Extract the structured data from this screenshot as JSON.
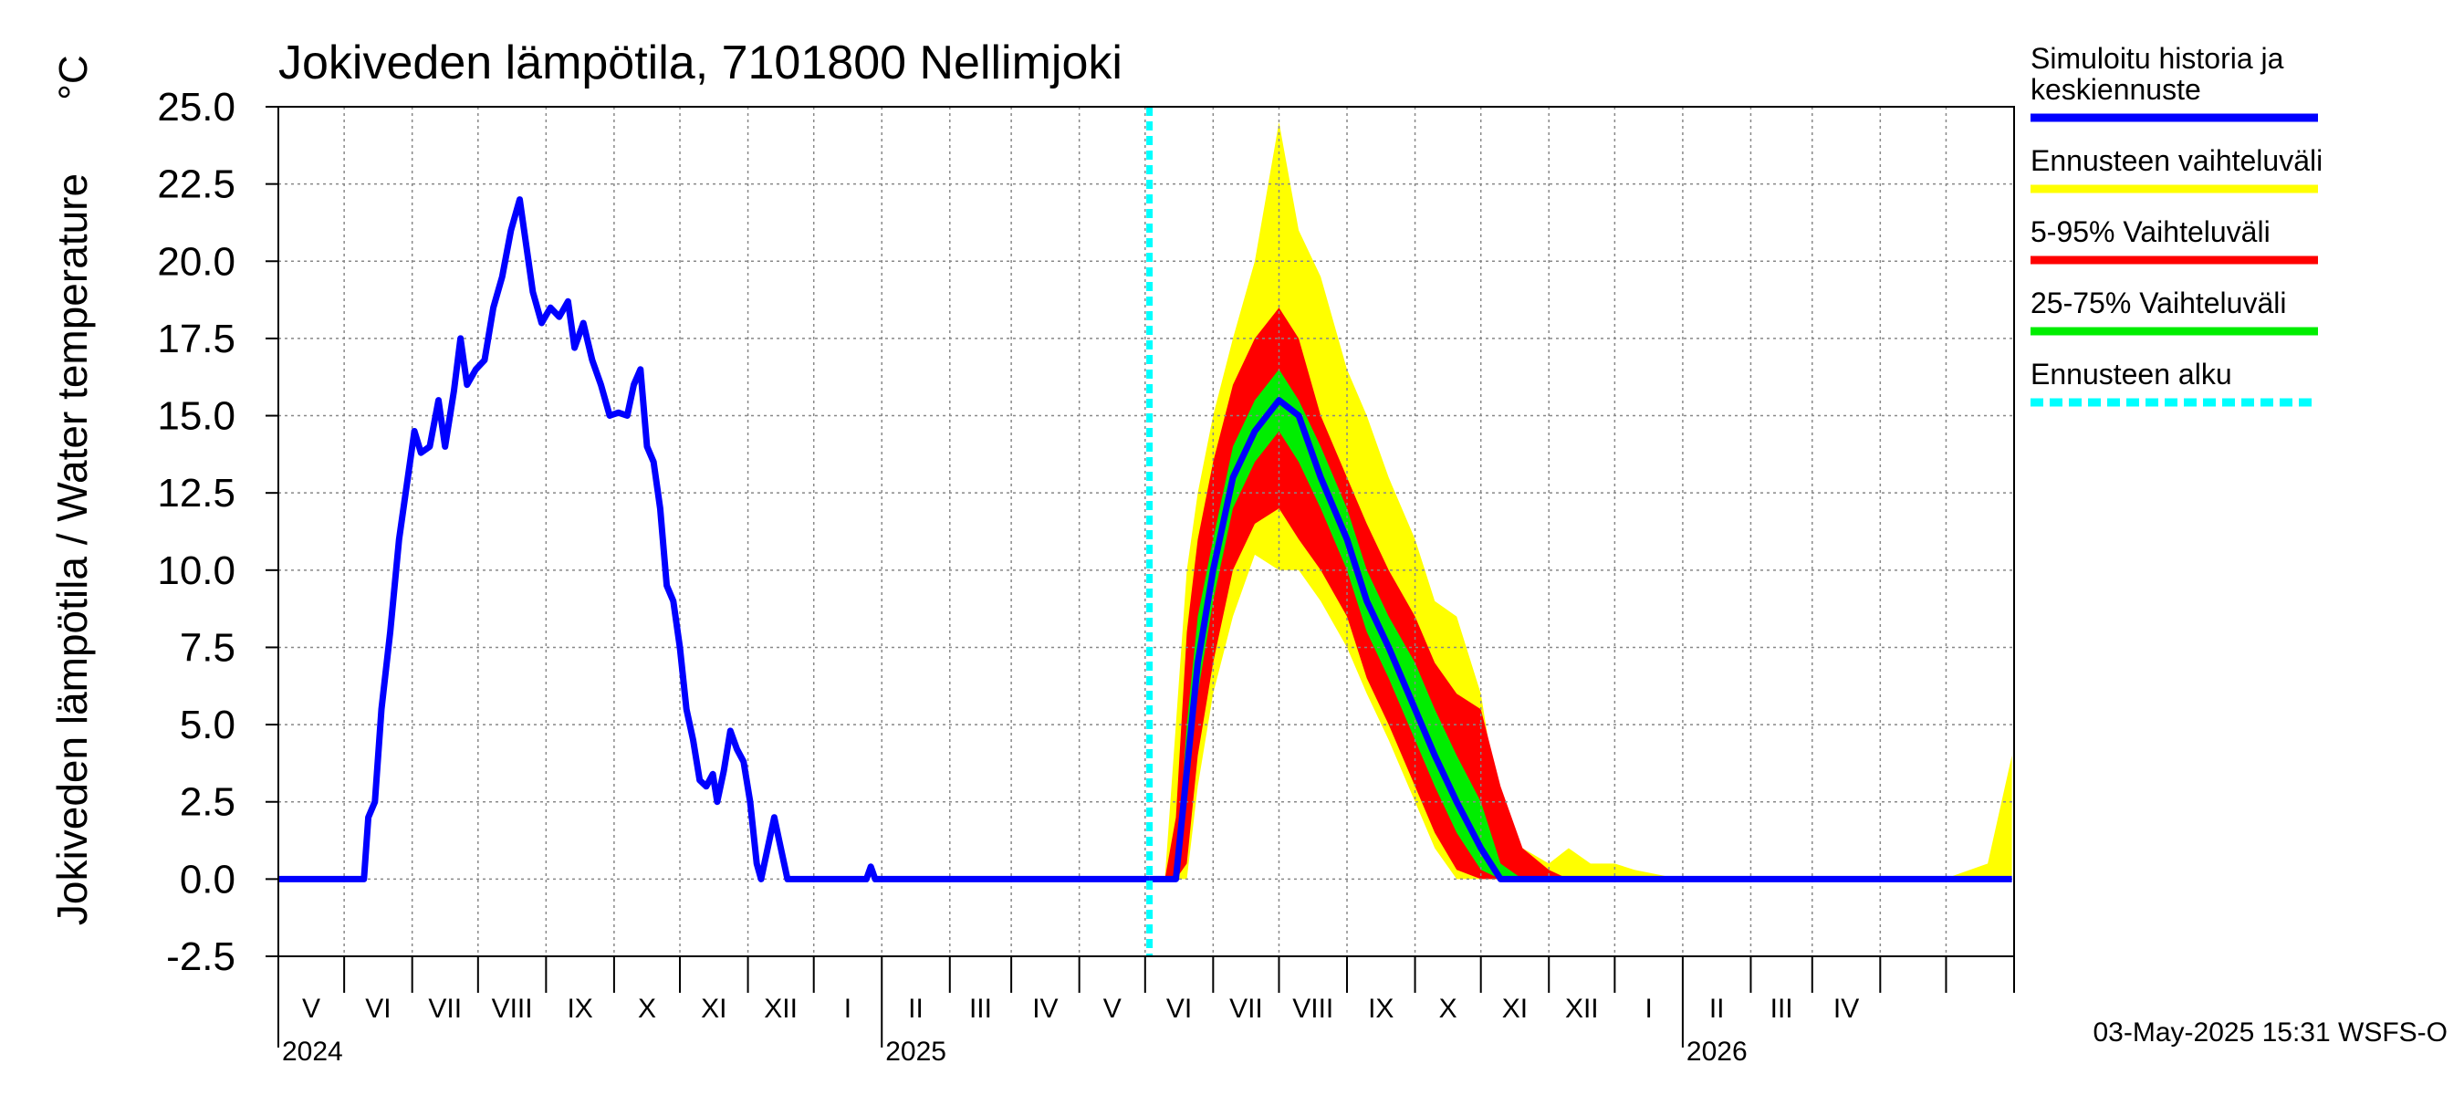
{
  "chart_data": {
    "type": "area",
    "title": "Jokiveden lämpötila, 7101800 Nellimjoki",
    "ylabel": "Jokiveden lämpötila / Water temperature",
    "yunit": "°C",
    "ylim": [
      -2.5,
      25.0
    ],
    "yticks": [
      "25.0",
      "22.5",
      "20.0",
      "17.5",
      "15.0",
      "12.5",
      "10.0",
      "7.5",
      "5.0",
      "2.5",
      "0.0",
      "-2.5"
    ],
    "xlim": [
      "2024-04-01",
      "2026-05-31"
    ],
    "grid": true,
    "month_labels": [
      "V",
      "VI",
      "VII",
      "VIII",
      "IX",
      "X",
      "XI",
      "XII",
      "I",
      "II",
      "III",
      "IV",
      "V",
      "VI",
      "VII",
      "VIII",
      "IX",
      "X",
      "XI",
      "XII",
      "I",
      "II",
      "III",
      "IV"
    ],
    "year_labels": [
      "2024",
      "2025",
      "2026"
    ],
    "forecast_start": "2025-05-03",
    "legend_position": "right",
    "legend": [
      {
        "label": "Simuloitu historia ja keskiennuste",
        "lines": [
          "Simuloitu historia ja",
          "keskiennuste"
        ],
        "color": "#0000ff",
        "style": "solid"
      },
      {
        "label": "Ennusteen vaihteluväli",
        "lines": [
          "Ennusteen vaihteluväli"
        ],
        "color": "#ffff00",
        "style": "solid"
      },
      {
        "label": "5-95% Vaihteluväli",
        "lines": [
          "5-95% Vaihteluväli"
        ],
        "color": "#ff0000",
        "style": "solid"
      },
      {
        "label": "25-75% Vaihteluväli",
        "lines": [
          "25-75% Vaihteluväli"
        ],
        "color": "#00ee00",
        "style": "solid"
      },
      {
        "label": "Ennusteen alku",
        "lines": [
          "Ennusteen alku"
        ],
        "color": "#00ffff",
        "style": "dashed"
      }
    ],
    "history": {
      "name": "Simuloitu historia ja keskiennuste",
      "points": [
        [
          "2024-04-01",
          0.0
        ],
        [
          "2024-05-10",
          0.0
        ],
        [
          "2024-05-12",
          2.0
        ],
        [
          "2024-05-15",
          2.5
        ],
        [
          "2024-05-18",
          5.5
        ],
        [
          "2024-05-22",
          8.0
        ],
        [
          "2024-05-26",
          11.0
        ],
        [
          "2024-05-30",
          13.0
        ],
        [
          "2024-06-02",
          14.5
        ],
        [
          "2024-06-05",
          13.8
        ],
        [
          "2024-06-09",
          14.0
        ],
        [
          "2024-06-13",
          15.5
        ],
        [
          "2024-06-16",
          14.0
        ],
        [
          "2024-06-20",
          15.8
        ],
        [
          "2024-06-23",
          17.5
        ],
        [
          "2024-06-26",
          16.0
        ],
        [
          "2024-06-30",
          16.5
        ],
        [
          "2024-07-04",
          16.8
        ],
        [
          "2024-07-08",
          18.5
        ],
        [
          "2024-07-12",
          19.5
        ],
        [
          "2024-07-16",
          21.0
        ],
        [
          "2024-07-20",
          22.0
        ],
        [
          "2024-07-23",
          20.5
        ],
        [
          "2024-07-26",
          19.0
        ],
        [
          "2024-07-30",
          18.0
        ],
        [
          "2024-08-03",
          18.5
        ],
        [
          "2024-08-07",
          18.2
        ],
        [
          "2024-08-11",
          18.7
        ],
        [
          "2024-08-14",
          17.2
        ],
        [
          "2024-08-18",
          18.0
        ],
        [
          "2024-08-22",
          16.8
        ],
        [
          "2024-08-26",
          16.0
        ],
        [
          "2024-08-30",
          15.0
        ],
        [
          "2024-09-03",
          15.1
        ],
        [
          "2024-09-07",
          15.0
        ],
        [
          "2024-09-10",
          16.0
        ],
        [
          "2024-09-13",
          16.5
        ],
        [
          "2024-09-16",
          14.0
        ],
        [
          "2024-09-19",
          13.5
        ],
        [
          "2024-09-22",
          12.0
        ],
        [
          "2024-09-25",
          9.5
        ],
        [
          "2024-09-28",
          9.0
        ],
        [
          "2024-10-01",
          7.5
        ],
        [
          "2024-10-04",
          5.5
        ],
        [
          "2024-10-07",
          4.5
        ],
        [
          "2024-10-10",
          3.2
        ],
        [
          "2024-10-13",
          3.0
        ],
        [
          "2024-10-16",
          3.4
        ],
        [
          "2024-10-18",
          2.5
        ],
        [
          "2024-10-21",
          3.5
        ],
        [
          "2024-10-24",
          4.8
        ],
        [
          "2024-10-27",
          4.2
        ],
        [
          "2024-10-30",
          3.8
        ],
        [
          "2024-11-02",
          2.5
        ],
        [
          "2024-11-05",
          0.5
        ],
        [
          "2024-11-07",
          0.0
        ],
        [
          "2024-11-10",
          1.0
        ],
        [
          "2024-11-13",
          2.0
        ],
        [
          "2024-11-16",
          1.0
        ],
        [
          "2024-11-19",
          0.0
        ],
        [
          "2024-12-25",
          0.0
        ],
        [
          "2024-12-27",
          0.4
        ],
        [
          "2024-12-29",
          0.0
        ],
        [
          "2025-05-03",
          0.0
        ]
      ]
    },
    "forecast": {
      "dates": [
        "2025-05-03",
        "2025-05-10",
        "2025-05-15",
        "2025-05-20",
        "2025-05-25",
        "2025-06-01",
        "2025-06-10",
        "2025-06-20",
        "2025-07-01",
        "2025-07-10",
        "2025-07-20",
        "2025-08-01",
        "2025-08-10",
        "2025-08-20",
        "2025-09-01",
        "2025-09-10",
        "2025-09-20",
        "2025-10-01",
        "2025-10-10",
        "2025-10-20",
        "2025-11-01",
        "2025-11-10",
        "2025-11-20",
        "2025-12-01",
        "2025-12-10",
        "2025-12-31",
        "2026-01-31",
        "2026-02-28",
        "2026-03-31",
        "2026-04-30",
        "2026-05-20",
        "2026-05-31"
      ],
      "max": [
        0.0,
        0.0,
        5.0,
        10.0,
        12.5,
        15.0,
        17.5,
        20.0,
        24.5,
        21.0,
        19.5,
        16.5,
        15.0,
        13.0,
        11.0,
        9.0,
        8.5,
        6.0,
        2.0,
        1.0,
        0.5,
        1.0,
        0.5,
        0.5,
        0.3,
        0.0,
        0.0,
        0.0,
        0.0,
        0.0,
        0.5,
        4.0
      ],
      "p95": [
        0.0,
        0.0,
        2.0,
        8.0,
        11.0,
        13.5,
        16.0,
        17.5,
        18.5,
        17.5,
        15.0,
        13.0,
        11.5,
        10.0,
        8.5,
        7.0,
        6.0,
        5.5,
        3.0,
        1.0,
        0.3,
        0.0,
        0.0,
        0.0,
        0.0,
        0.0,
        0.0,
        0.0,
        0.0,
        0.0,
        0.0,
        0.0
      ],
      "p75": [
        0.0,
        0.0,
        0.0,
        5.0,
        8.5,
        11.0,
        14.0,
        15.5,
        16.5,
        15.5,
        14.0,
        12.0,
        10.0,
        8.5,
        7.0,
        5.5,
        4.0,
        2.5,
        0.5,
        0.0,
        0.0,
        0.0,
        0.0,
        0.0,
        0.0,
        0.0,
        0.0,
        0.0,
        0.0,
        0.0,
        0.0,
        0.0
      ],
      "mean": [
        0.0,
        0.0,
        0.0,
        3.5,
        7.0,
        10.0,
        13.0,
        14.5,
        15.5,
        15.0,
        13.0,
        11.0,
        9.0,
        7.5,
        5.5,
        4.0,
        2.5,
        1.0,
        0.0,
        0.0,
        0.0,
        0.0,
        0.0,
        0.0,
        0.0,
        0.0,
        0.0,
        0.0,
        0.0,
        0.0,
        0.0,
        0.0
      ],
      "p25": [
        0.0,
        0.0,
        0.0,
        2.5,
        6.0,
        9.0,
        12.0,
        13.5,
        14.5,
        13.5,
        12.0,
        10.0,
        8.0,
        6.5,
        4.5,
        3.0,
        1.5,
        0.3,
        0.0,
        0.0,
        0.0,
        0.0,
        0.0,
        0.0,
        0.0,
        0.0,
        0.0,
        0.0,
        0.0,
        0.0,
        0.0,
        0.0
      ],
      "p5": [
        0.0,
        0.0,
        0.0,
        0.5,
        4.0,
        7.0,
        10.0,
        11.5,
        12.0,
        11.0,
        10.0,
        8.5,
        6.5,
        5.0,
        3.0,
        1.5,
        0.3,
        0.0,
        0.0,
        0.0,
        0.0,
        0.0,
        0.0,
        0.0,
        0.0,
        0.0,
        0.0,
        0.0,
        0.0,
        0.0,
        0.0,
        0.0
      ],
      "min": [
        0.0,
        0.0,
        0.0,
        0.0,
        3.0,
        6.0,
        8.5,
        10.5,
        10.0,
        10.0,
        9.0,
        7.5,
        6.0,
        4.5,
        2.5,
        1.0,
        0.0,
        0.0,
        0.0,
        0.0,
        0.0,
        0.0,
        0.0,
        0.0,
        0.0,
        0.0,
        0.0,
        0.0,
        0.0,
        0.0,
        0.0,
        0.0
      ]
    }
  },
  "footer": "03-May-2025 15:31 WSFS-O"
}
